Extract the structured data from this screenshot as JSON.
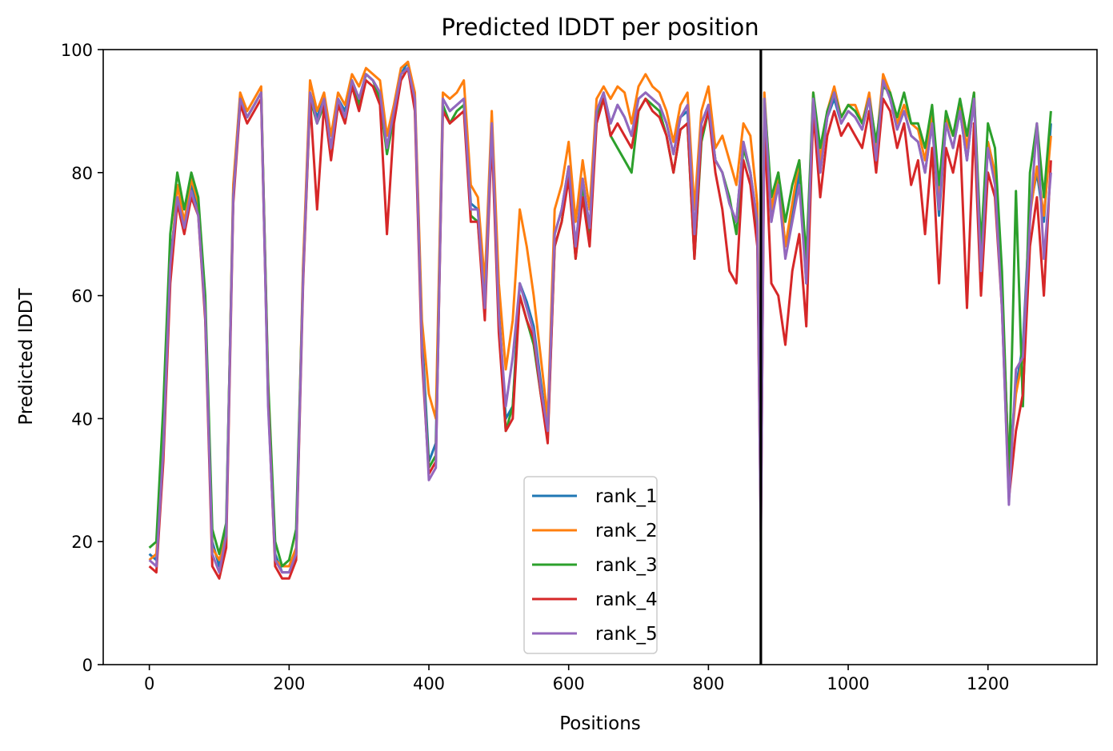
{
  "chart_data": {
    "type": "line",
    "title": "Predicted lDDT per position",
    "xlabel": "Positions",
    "ylabel": "Predicted lDDT",
    "xlim": [
      -66,
      1356
    ],
    "ylim": [
      0,
      100
    ],
    "xticks": [
      0,
      200,
      400,
      600,
      800,
      1000,
      1200
    ],
    "yticks": [
      0,
      20,
      40,
      60,
      80,
      100
    ],
    "grid": false,
    "legend_position": "lower-center",
    "chain_break_position": 875,
    "x": [
      0,
      10,
      20,
      30,
      40,
      50,
      60,
      70,
      80,
      90,
      100,
      110,
      120,
      130,
      140,
      150,
      160,
      170,
      180,
      190,
      200,
      210,
      220,
      230,
      240,
      250,
      260,
      270,
      280,
      290,
      300,
      310,
      320,
      330,
      340,
      350,
      360,
      370,
      380,
      390,
      400,
      410,
      420,
      430,
      440,
      450,
      460,
      470,
      480,
      490,
      500,
      510,
      520,
      530,
      540,
      550,
      560,
      570,
      580,
      590,
      600,
      610,
      620,
      630,
      640,
      650,
      660,
      670,
      680,
      690,
      700,
      710,
      720,
      730,
      740,
      750,
      760,
      770,
      780,
      790,
      800,
      810,
      820,
      830,
      840,
      850,
      860,
      870,
      875,
      880,
      890,
      900,
      910,
      920,
      930,
      940,
      950,
      960,
      970,
      980,
      990,
      1000,
      1010,
      1020,
      1030,
      1040,
      1050,
      1060,
      1070,
      1080,
      1090,
      1100,
      1110,
      1120,
      1130,
      1140,
      1150,
      1160,
      1170,
      1180,
      1190,
      1200,
      1210,
      1220,
      1230,
      1240,
      1250,
      1260,
      1270,
      1280,
      1290
    ],
    "series": [
      {
        "name": "rank_1",
        "color": "#1f77b4",
        "values": [
          18,
          17,
          36,
          66,
          76,
          71,
          78,
          74,
          58,
          20,
          16,
          22,
          77,
          92,
          89,
          91,
          93,
          45,
          18,
          15,
          15,
          18,
          64,
          93,
          89,
          92,
          84,
          92,
          90,
          95,
          92,
          96,
          95,
          93,
          84,
          90,
          96,
          98,
          92,
          54,
          33,
          36,
          92,
          90,
          91,
          92,
          75,
          74,
          59,
          88,
          58,
          40,
          42,
          62,
          59,
          55,
          46,
          38,
          70,
          74,
          81,
          68,
          79,
          71,
          90,
          93,
          88,
          91,
          89,
          86,
          92,
          93,
          92,
          91,
          88,
          83,
          89,
          90,
          69,
          88,
          91,
          82,
          80,
          75,
          72,
          85,
          80,
          72,
          30,
          92,
          72,
          80,
          68,
          73,
          80,
          62,
          92,
          80,
          89,
          92,
          88,
          90,
          89,
          87,
          92,
          82,
          95,
          92,
          87,
          90,
          86,
          85,
          80,
          88,
          73,
          88,
          84,
          90,
          82,
          92,
          65,
          85,
          80,
          60,
          32,
          45,
          52,
          74,
          80,
          72,
          88
        ]
      },
      {
        "name": "rank_2",
        "color": "#ff7f0e",
        "values": [
          17,
          18,
          34,
          64,
          78,
          72,
          79,
          75,
          57,
          19,
          17,
          21,
          78,
          93,
          90,
          92,
          94,
          44,
          17,
          16,
          16,
          19,
          65,
          95,
          90,
          93,
          86,
          93,
          91,
          96,
          94,
          97,
          96,
          95,
          86,
          91,
          97,
          98,
          93,
          56,
          44,
          40,
          93,
          92,
          93,
          95,
          78,
          76,
          62,
          90,
          62,
          48,
          56,
          74,
          68,
          60,
          50,
          40,
          74,
          78,
          85,
          72,
          82,
          74,
          92,
          94,
          92,
          94,
          93,
          88,
          94,
          96,
          94,
          93,
          90,
          85,
          91,
          93,
          74,
          90,
          94,
          84,
          86,
          82,
          78,
          88,
          86,
          75,
          28,
          93,
          74,
          80,
          68,
          75,
          82,
          64,
          93,
          82,
          90,
          94,
          89,
          91,
          91,
          88,
          93,
          84,
          96,
          93,
          88,
          91,
          88,
          87,
          82,
          90,
          76,
          89,
          86,
          91,
          84,
          93,
          66,
          85,
          80,
          61,
          31,
          44,
          50,
          73,
          81,
          73,
          86
        ]
      },
      {
        "name": "rank_3",
        "color": "#2ca02c",
        "values": [
          19,
          20,
          42,
          70,
          80,
          74,
          80,
          76,
          60,
          22,
          18,
          23,
          76,
          92,
          89,
          91,
          93,
          46,
          20,
          16,
          17,
          22,
          63,
          92,
          88,
          91,
          84,
          91,
          89,
          95,
          91,
          96,
          95,
          92,
          83,
          89,
          96,
          97,
          91,
          52,
          32,
          34,
          91,
          88,
          90,
          91,
          73,
          72,
          58,
          87,
          56,
          38,
          42,
          60,
          56,
          52,
          44,
          37,
          68,
          72,
          80,
          66,
          78,
          70,
          89,
          92,
          86,
          84,
          82,
          80,
          90,
          92,
          91,
          90,
          86,
          80,
          87,
          88,
          66,
          85,
          90,
          82,
          80,
          76,
          70,
          84,
          80,
          70,
          26,
          92,
          76,
          80,
          72,
          78,
          82,
          66,
          93,
          84,
          90,
          93,
          89,
          91,
          90,
          88,
          92,
          85,
          94,
          93,
          89,
          93,
          88,
          88,
          84,
          91,
          78,
          90,
          86,
          92,
          86,
          93,
          68,
          88,
          84,
          64,
          30,
          77,
          42,
          80,
          88,
          76,
          90
        ]
      },
      {
        "name": "rank_4",
        "color": "#d62728",
        "values": [
          16,
          15,
          33,
          62,
          75,
          70,
          76,
          73,
          56,
          16,
          14,
          19,
          75,
          91,
          88,
          90,
          92,
          43,
          16,
          14,
          14,
          17,
          62,
          92,
          74,
          91,
          82,
          91,
          88,
          94,
          90,
          95,
          94,
          91,
          70,
          88,
          95,
          97,
          90,
          50,
          31,
          33,
          90,
          88,
          89,
          90,
          72,
          72,
          56,
          86,
          54,
          38,
          40,
          60,
          56,
          53,
          44,
          36,
          68,
          72,
          79,
          66,
          76,
          68,
          88,
          92,
          86,
          88,
          86,
          84,
          90,
          92,
          90,
          89,
          86,
          80,
          87,
          88,
          66,
          86,
          90,
          80,
          74,
          64,
          62,
          82,
          78,
          68,
          22,
          88,
          62,
          60,
          52,
          64,
          70,
          55,
          90,
          76,
          86,
          90,
          86,
          88,
          86,
          84,
          90,
          80,
          92,
          90,
          84,
          88,
          78,
          82,
          70,
          84,
          62,
          84,
          80,
          86,
          58,
          88,
          60,
          80,
          76,
          58,
          27,
          38,
          44,
          68,
          76,
          60,
          82
        ]
      },
      {
        "name": "rank_5",
        "color": "#9467bd",
        "values": [
          17,
          16,
          35,
          65,
          76,
          71,
          77,
          73,
          57,
          18,
          15,
          21,
          76,
          92,
          89,
          91,
          93,
          42,
          17,
          15,
          15,
          18,
          63,
          93,
          88,
          92,
          84,
          92,
          89,
          95,
          92,
          96,
          95,
          93,
          84,
          90,
          96,
          97,
          92,
          52,
          30,
          32,
          92,
          90,
          91,
          92,
          74,
          74,
          58,
          88,
          57,
          42,
          50,
          62,
          58,
          54,
          45,
          38,
          70,
          74,
          81,
          68,
          79,
          71,
          90,
          93,
          88,
          91,
          89,
          86,
          92,
          93,
          92,
          91,
          88,
          83,
          89,
          91,
          70,
          88,
          91,
          82,
          80,
          75,
          72,
          85,
          80,
          72,
          20,
          92,
          72,
          78,
          66,
          72,
          78,
          62,
          92,
          80,
          89,
          93,
          88,
          90,
          89,
          87,
          92,
          82,
          95,
          92,
          87,
          90,
          86,
          85,
          80,
          88,
          74,
          88,
          84,
          90,
          82,
          92,
          64,
          84,
          78,
          58,
          26,
          48,
          50,
          72,
          88,
          66,
          80
        ]
      }
    ]
  }
}
